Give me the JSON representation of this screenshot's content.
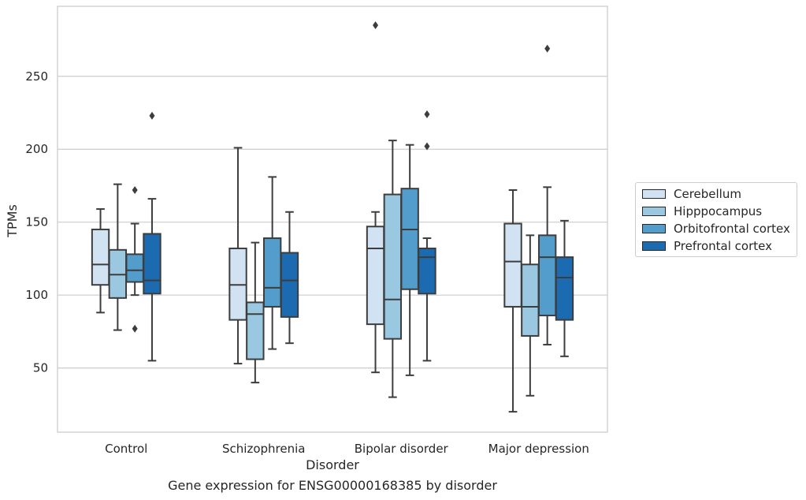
{
  "chart_data": {
    "type": "box",
    "title": "",
    "xlabel": "Disorder",
    "ylabel": "TPMs",
    "caption": "Gene expression for ENSG00000168385 by disorder",
    "ylim": [
      6,
      298
    ],
    "yticks": [
      50,
      100,
      150,
      200,
      250
    ],
    "grid": "horizontal",
    "legend_position": "right",
    "categories": [
      "Control",
      "Schizophrenia",
      "Bipolar disorder",
      "Major depression"
    ],
    "series": [
      {
        "name": "Cerebellum",
        "color": "#d1e2f2",
        "boxes": [
          {
            "whislo": 88,
            "q1": 107,
            "med": 121,
            "q3": 145,
            "whishi": 159,
            "fliers": []
          },
          {
            "whislo": 53,
            "q1": 83,
            "med": 107,
            "q3": 132,
            "whishi": 201,
            "fliers": []
          },
          {
            "whislo": 47,
            "q1": 80,
            "med": 132,
            "q3": 147,
            "whishi": 157,
            "fliers": [
              285
            ]
          },
          {
            "whislo": 20,
            "q1": 92,
            "med": 123,
            "q3": 149,
            "whishi": 172,
            "fliers": []
          }
        ]
      },
      {
        "name": "Hipppocampus",
        "color": "#9ac8e0",
        "boxes": [
          {
            "whislo": 76,
            "q1": 98,
            "med": 114,
            "q3": 131,
            "whishi": 176,
            "fliers": []
          },
          {
            "whislo": 40,
            "q1": 56,
            "med": 87,
            "q3": 95,
            "whishi": 136,
            "fliers": []
          },
          {
            "whislo": 30,
            "q1": 70,
            "med": 97,
            "q3": 169,
            "whishi": 206,
            "fliers": []
          },
          {
            "whislo": 31,
            "q1": 72,
            "med": 92,
            "q3": 121,
            "whishi": 141,
            "fliers": []
          }
        ]
      },
      {
        "name": "Orbitofrontal cortex",
        "color": "#529dcc",
        "boxes": [
          {
            "whislo": 100,
            "q1": 109,
            "med": 117,
            "q3": 128,
            "whishi": 149,
            "fliers": [
              172,
              77
            ]
          },
          {
            "whislo": 63,
            "q1": 92,
            "med": 105,
            "q3": 139,
            "whishi": 181,
            "fliers": []
          },
          {
            "whislo": 45,
            "q1": 104,
            "med": 145,
            "q3": 173,
            "whishi": 203,
            "fliers": []
          },
          {
            "whislo": 66,
            "q1": 86,
            "med": 126,
            "q3": 141,
            "whishi": 174,
            "fliers": [
              269
            ]
          }
        ]
      },
      {
        "name": "Prefrontal cortex",
        "color": "#1c6aaf",
        "boxes": [
          {
            "whislo": 55,
            "q1": 101,
            "med": 110,
            "q3": 142,
            "whishi": 166,
            "fliers": [
              223
            ]
          },
          {
            "whislo": 67,
            "q1": 85,
            "med": 110,
            "q3": 129,
            "whishi": 157,
            "fliers": []
          },
          {
            "whislo": 55,
            "q1": 101,
            "med": 126,
            "q3": 132,
            "whishi": 139,
            "fliers": [
              224,
              202
            ]
          },
          {
            "whislo": 58,
            "q1": 83,
            "med": 112,
            "q3": 126,
            "whishi": 151,
            "fliers": []
          }
        ]
      }
    ]
  },
  "legend": {
    "items": [
      {
        "label": "Cerebellum",
        "color": "#d1e2f2"
      },
      {
        "label": "Hipppocampus",
        "color": "#9ac8e0"
      },
      {
        "label": "Orbitofrontal cortex",
        "color": "#529dcc"
      },
      {
        "label": "Prefrontal cortex",
        "color": "#1c6aaf"
      }
    ]
  }
}
